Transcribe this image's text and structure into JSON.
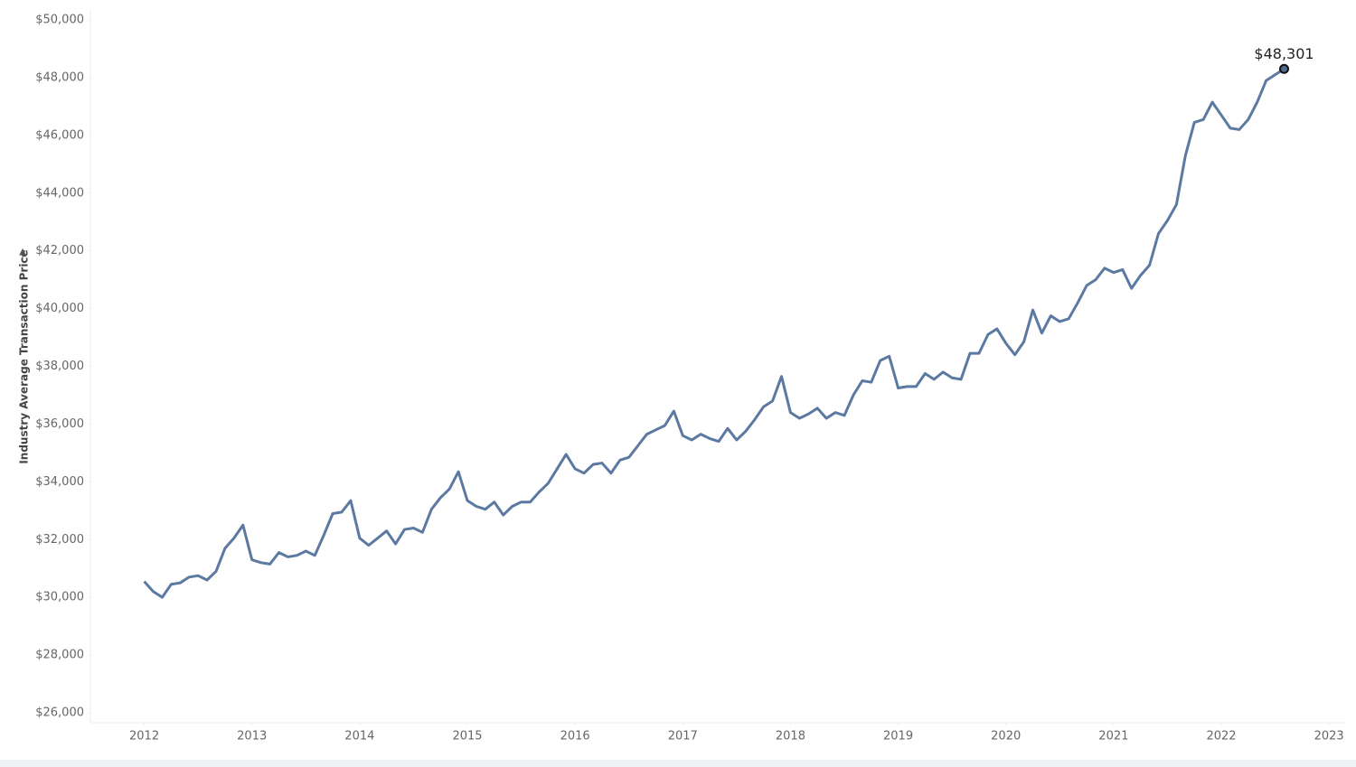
{
  "chart_data": {
    "type": "line",
    "y_label": "Industry Average Transaction Price",
    "x": [
      "2012-01",
      "2012-02",
      "2012-03",
      "2012-04",
      "2012-05",
      "2012-06",
      "2012-07",
      "2012-08",
      "2012-09",
      "2012-10",
      "2012-11",
      "2012-12",
      "2013-01",
      "2013-02",
      "2013-03",
      "2013-04",
      "2013-05",
      "2013-06",
      "2013-07",
      "2013-08",
      "2013-09",
      "2013-10",
      "2013-11",
      "2013-12",
      "2014-01",
      "2014-02",
      "2014-03",
      "2014-04",
      "2014-05",
      "2014-06",
      "2014-07",
      "2014-08",
      "2014-09",
      "2014-10",
      "2014-11",
      "2014-12",
      "2015-01",
      "2015-02",
      "2015-03",
      "2015-04",
      "2015-05",
      "2015-06",
      "2015-07",
      "2015-08",
      "2015-09",
      "2015-10",
      "2015-11",
      "2015-12",
      "2016-01",
      "2016-02",
      "2016-03",
      "2016-04",
      "2016-05",
      "2016-06",
      "2016-07",
      "2016-08",
      "2016-09",
      "2016-10",
      "2016-11",
      "2016-12",
      "2017-01",
      "2017-02",
      "2017-03",
      "2017-04",
      "2017-05",
      "2017-06",
      "2017-07",
      "2017-08",
      "2017-09",
      "2017-10",
      "2017-11",
      "2017-12",
      "2018-01",
      "2018-02",
      "2018-03",
      "2018-04",
      "2018-05",
      "2018-06",
      "2018-07",
      "2018-08",
      "2018-09",
      "2018-10",
      "2018-11",
      "2018-12",
      "2019-01",
      "2019-02",
      "2019-03",
      "2019-04",
      "2019-05",
      "2019-06",
      "2019-07",
      "2019-08",
      "2019-09",
      "2019-10",
      "2019-11",
      "2019-12",
      "2020-01",
      "2020-02",
      "2020-03",
      "2020-04",
      "2020-05",
      "2020-06",
      "2020-07",
      "2020-08",
      "2020-09",
      "2020-10",
      "2020-11",
      "2020-12",
      "2021-01",
      "2021-02",
      "2021-03",
      "2021-04",
      "2021-05",
      "2021-06",
      "2021-07",
      "2021-08",
      "2021-09",
      "2021-10",
      "2021-11",
      "2021-12",
      "2022-01",
      "2022-02",
      "2022-03",
      "2022-04",
      "2022-05",
      "2022-06",
      "2022-07",
      "2022-08"
    ],
    "series": [
      {
        "name": "Industry Average Transaction Price",
        "color": "#5b79a1",
        "values": [
          30550,
          30200,
          30000,
          30450,
          30500,
          30700,
          30750,
          30600,
          30900,
          31700,
          32050,
          32500,
          31300,
          31200,
          31150,
          31550,
          31400,
          31450,
          31600,
          31450,
          32150,
          32900,
          32950,
          33350,
          32050,
          31800,
          32050,
          32300,
          31850,
          32350,
          32400,
          32250,
          33050,
          33450,
          33750,
          34350,
          33350,
          33150,
          33050,
          33300,
          32850,
          33150,
          33300,
          33300,
          33650,
          33950,
          34450,
          34950,
          34450,
          34300,
          34600,
          34650,
          34300,
          34750,
          34850,
          35250,
          35650,
          35800,
          35950,
          36450,
          35600,
          35450,
          35650,
          35500,
          35400,
          35850,
          35450,
          35750,
          36150,
          36600,
          36800,
          37650,
          36400,
          36200,
          36350,
          36550,
          36200,
          36400,
          36300,
          37000,
          37500,
          37450,
          38200,
          38350,
          37250,
          37300,
          37300,
          37750,
          37550,
          37800,
          37600,
          37550,
          38450,
          38450,
          39100,
          39300,
          38800,
          38400,
          38850,
          39950,
          39150,
          39750,
          39550,
          39650,
          40200,
          40800,
          41000,
          41400,
          41250,
          41350,
          40700,
          41150,
          41500,
          42600,
          43050,
          43600,
          45300,
          46450,
          46550,
          47150,
          46700,
          46250,
          46200,
          46550,
          47150,
          47900,
          48100,
          48301
        ],
        "value_labels": [
          null,
          null,
          null,
          null,
          null,
          null,
          null,
          null,
          null,
          null,
          null,
          null,
          null,
          null,
          null,
          null,
          null,
          null,
          null,
          null,
          null,
          null,
          null,
          null,
          null,
          null,
          null,
          null,
          null,
          null,
          null,
          null,
          null,
          null,
          null,
          null,
          null,
          null,
          null,
          null,
          null,
          null,
          null,
          null,
          null,
          null,
          null,
          null,
          null,
          null,
          null,
          null,
          null,
          null,
          null,
          null,
          null,
          null,
          null,
          null,
          null,
          null,
          null,
          null,
          null,
          null,
          null,
          null,
          null,
          null,
          null,
          null,
          null,
          null,
          null,
          null,
          null,
          null,
          null,
          null,
          null,
          null,
          null,
          null,
          null,
          null,
          null,
          null,
          null,
          null,
          null,
          null,
          null,
          null,
          null,
          null,
          null,
          null,
          null,
          null,
          null,
          null,
          null,
          null,
          null,
          null,
          null,
          null,
          null,
          null,
          null,
          null,
          null,
          null,
          null,
          null,
          null,
          null,
          null,
          null,
          null,
          null,
          null,
          null,
          null,
          null,
          null,
          "$48,301"
        ]
      }
    ],
    "xlim": [
      "2011-07",
      "2023-03"
    ],
    "xticks": [
      2012,
      2013,
      2014,
      2015,
      2016,
      2017,
      2018,
      2019,
      2020,
      2021,
      2022,
      2023
    ],
    "ylim": [
      26000,
      50000
    ],
    "yticks": [
      {
        "value": 26000,
        "label": "$26,000"
      },
      {
        "value": 28000,
        "label": "$28,000"
      },
      {
        "value": 30000,
        "label": "$30,000"
      },
      {
        "value": 32000,
        "label": "$32,000"
      },
      {
        "value": 34000,
        "label": "$34,000"
      },
      {
        "value": 36000,
        "label": "$36,000"
      },
      {
        "value": 38000,
        "label": "$38,000"
      },
      {
        "value": 40000,
        "label": "$40,000"
      },
      {
        "value": 42000,
        "label": "$42,000"
      },
      {
        "value": 44000,
        "label": "$44,000"
      },
      {
        "value": 46000,
        "label": "$46,000"
      },
      {
        "value": 48000,
        "label": "$48,000"
      },
      {
        "value": 50000,
        "label": "$50,000"
      }
    ],
    "grid": false
  }
}
